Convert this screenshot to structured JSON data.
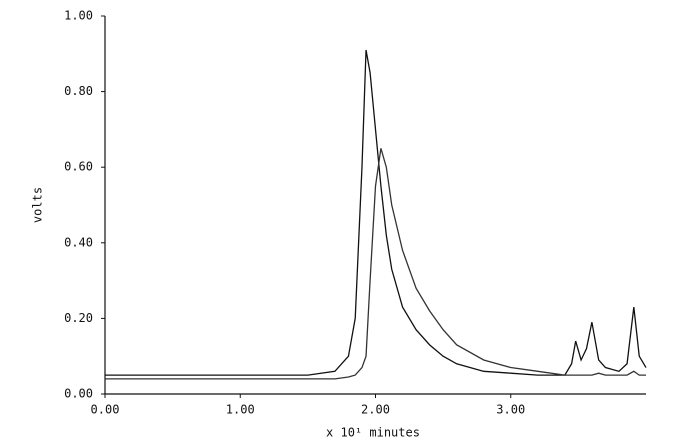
{
  "chart_data": {
    "type": "line",
    "xlabel": "x 10¹ minutes",
    "ylabel": "volts",
    "x": [
      0,
      0.5,
      1.0,
      1.5,
      1.7,
      1.8,
      1.85,
      1.9,
      1.93,
      1.96,
      2.0,
      2.04,
      2.08,
      2.12,
      2.2,
      2.3,
      2.4,
      2.5,
      2.6,
      2.8,
      3.0,
      3.2,
      3.4,
      3.45,
      3.48,
      3.52,
      3.56,
      3.6,
      3.65,
      3.7,
      3.8,
      3.86,
      3.91,
      3.95,
      4.0
    ],
    "series": [
      {
        "color": "#111111",
        "values": [
          0.05,
          0.05,
          0.05,
          0.05,
          0.06,
          0.1,
          0.2,
          0.6,
          0.91,
          0.85,
          0.7,
          0.55,
          0.42,
          0.33,
          0.23,
          0.17,
          0.13,
          0.1,
          0.08,
          0.06,
          0.055,
          0.05,
          0.05,
          0.08,
          0.14,
          0.09,
          0.12,
          0.19,
          0.09,
          0.07,
          0.06,
          0.08,
          0.23,
          0.1,
          0.07
        ]
      },
      {
        "color": "#333333",
        "values": [
          0.04,
          0.04,
          0.04,
          0.04,
          0.04,
          0.045,
          0.05,
          0.07,
          0.1,
          0.3,
          0.55,
          0.65,
          0.6,
          0.5,
          0.38,
          0.28,
          0.22,
          0.17,
          0.13,
          0.09,
          0.07,
          0.06,
          0.05,
          0.05,
          0.05,
          0.05,
          0.05,
          0.05,
          0.055,
          0.05,
          0.05,
          0.05,
          0.06,
          0.05,
          0.05
        ]
      }
    ],
    "xlim": [
      0,
      4.0
    ],
    "xticks": [
      {
        "value": 0,
        "label": "0.00"
      },
      {
        "value": 1,
        "label": "1.00"
      },
      {
        "value": 2,
        "label": "2.00"
      },
      {
        "value": 3,
        "label": "3.00"
      }
    ],
    "ylim": [
      0,
      1.0
    ],
    "yticks": [
      {
        "value": 0,
        "label": "0.00"
      },
      {
        "value": 0.2,
        "label": "0.20"
      },
      {
        "value": 0.4,
        "label": "0.40"
      },
      {
        "value": 0.6,
        "label": "0.60"
      },
      {
        "value": 0.8,
        "label": "0.80"
      },
      {
        "value": 1.0,
        "label": "1.00"
      }
    ],
    "grid": false
  }
}
